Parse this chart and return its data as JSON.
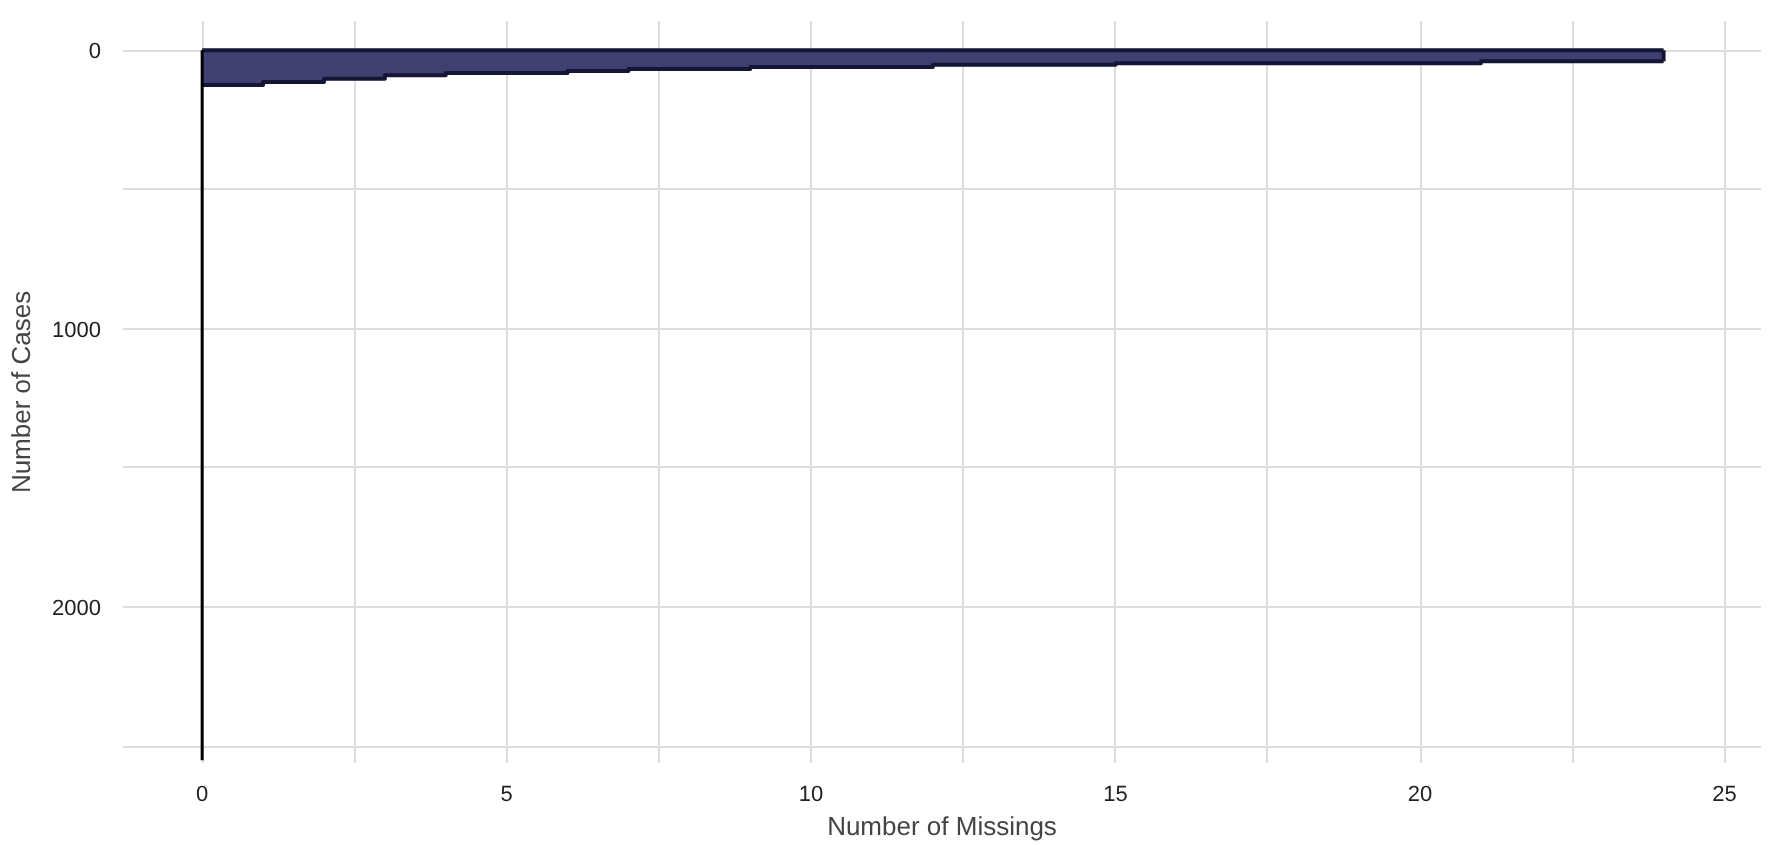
{
  "chart_data": {
    "type": "area",
    "xlabel": "Number of Missings",
    "ylabel": "Number of Cases",
    "xlim": [
      -1.3,
      25.6
    ],
    "ylim": [
      2560,
      -105
    ],
    "xticks": [
      0,
      {
        "value": 2.5,
        "label": null
      },
      5,
      {
        "value": 7.5,
        "label": null
      },
      10,
      {
        "value": 12.5,
        "label": null
      },
      15,
      {
        "value": 17.5,
        "label": null
      },
      20,
      {
        "value": 22.5,
        "label": null
      },
      25
    ],
    "yticks": [
      0,
      {
        "value": 500,
        "label": null
      },
      1000,
      {
        "value": 1500,
        "label": null
      },
      2000,
      {
        "value": 2500,
        "label": null
      }
    ],
    "grid": true,
    "series": [
      {
        "color": "#3f3f70",
        "x": [
          0,
          1,
          2,
          3,
          4,
          6,
          7,
          9,
          12,
          15,
          21,
          24
        ],
        "values": [
          125,
          114,
          102,
          90,
          82,
          75,
          67,
          60,
          52,
          47,
          40,
          40
        ]
      },
      {
        "type": "line",
        "color": "#000000",
        "x": [
          0,
          0
        ],
        "values": [
          0,
          2550
        ]
      }
    ]
  }
}
